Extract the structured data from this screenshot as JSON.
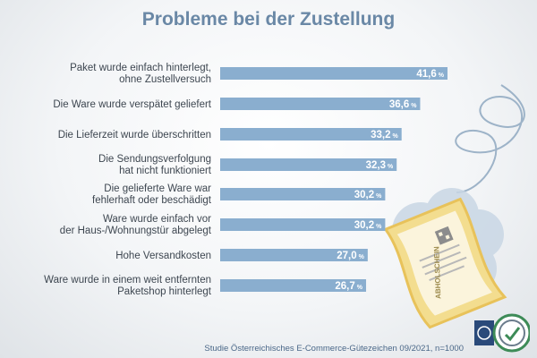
{
  "title": "Probleme bei der Zustellung",
  "source": "Studie Österreichisches E-Commerce-Gütezeichen 09/2021, n=1000",
  "colors": {
    "bar": "#8aaecf",
    "title": "#6a88a6",
    "voucher": "#f2dc8a",
    "cloud": "#cbd8e6"
  },
  "voucher_text": "ABHOLSCHEIN",
  "chart_data": {
    "type": "bar",
    "orientation": "horizontal",
    "title": "Probleme bei der Zustellung",
    "unit": "%",
    "xlim": [
      0,
      50
    ],
    "grid": false,
    "categories": [
      [
        "Paket wurde einfach hinterlegt,",
        "ohne Zustellversuch"
      ],
      [
        "Die Ware wurde verspätet geliefert"
      ],
      [
        "Die Lieferzeit wurde überschritten"
      ],
      [
        "Die Sendungsverfolgung",
        "hat nicht funktioniert"
      ],
      [
        "Die gelieferte Ware war",
        "fehlerhaft oder beschädigt"
      ],
      [
        "Ware wurde einfach vor",
        "der Haus-/Wohnungstür abgelegt"
      ],
      [
        "Hohe Versandkosten"
      ],
      [
        "Ware wurde in einem weit entfernten",
        "Paketshop hinterlegt"
      ]
    ],
    "values": [
      41.6,
      36.6,
      33.2,
      32.3,
      30.2,
      30.2,
      27.0,
      26.7
    ],
    "value_labels": [
      "41,6",
      "36,6",
      "33,2",
      "32,3",
      "30,2",
      "30,2",
      "27,0",
      "26,7"
    ]
  }
}
